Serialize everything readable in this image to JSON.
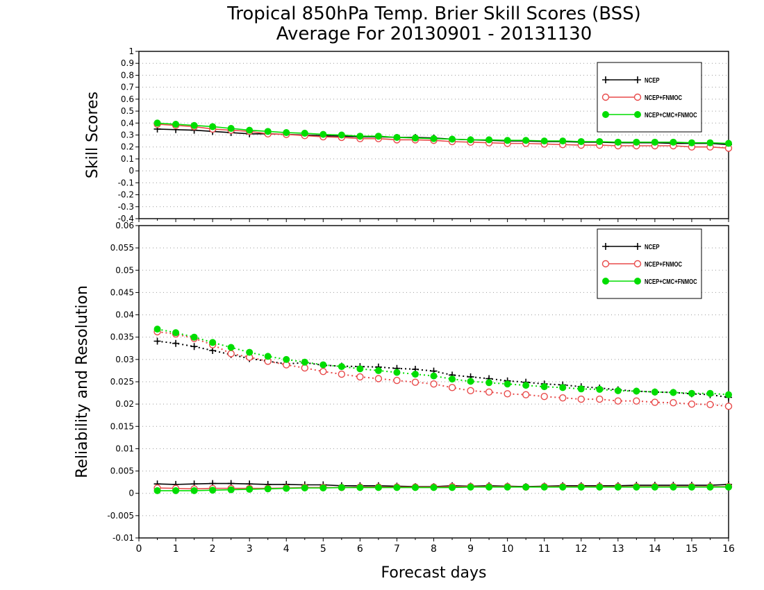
{
  "title_line1": "Tropical 850hPa Temp. Brier Skill Scores (BSS)",
  "title_line2": "Average For 20130901 - 20131130",
  "colors": {
    "ncep": "#000000",
    "ncep_fnmoc": "#e84a4a",
    "ncep_cmc_fnmoc": "#00dd00"
  },
  "chart_data": [
    {
      "type": "line",
      "ylabel": "Skill Scores",
      "xlim": [
        0,
        16
      ],
      "ylim": [
        -0.4,
        1
      ],
      "yticks": [
        -0.4,
        -0.3,
        -0.2,
        -0.1,
        0,
        0.1,
        0.2,
        0.3,
        0.4,
        0.5,
        0.6,
        0.7,
        0.8,
        0.9,
        1
      ],
      "grid": true,
      "legend_position": "top-right",
      "x": [
        0.5,
        1,
        1.5,
        2,
        2.5,
        3,
        3.5,
        4,
        4.5,
        5,
        5.5,
        6,
        6.5,
        7,
        7.5,
        8,
        8.5,
        9,
        9.5,
        10,
        10.5,
        11,
        11.5,
        12,
        12.5,
        13,
        13.5,
        14,
        14.5,
        15,
        15.5,
        16
      ],
      "series": [
        {
          "name": "NCEP",
          "style": "line",
          "marker": "plus",
          "values": [
            0.35,
            0.345,
            0.34,
            0.33,
            0.32,
            0.31,
            0.31,
            0.305,
            0.3,
            0.295,
            0.29,
            0.285,
            0.285,
            0.28,
            0.28,
            0.275,
            0.265,
            0.26,
            0.255,
            0.25,
            0.25,
            0.245,
            0.245,
            0.24,
            0.24,
            0.235,
            0.235,
            0.235,
            0.23,
            0.23,
            0.23,
            0.22
          ]
        },
        {
          "name": "NCEP+FNMOC",
          "style": "line",
          "marker": "open-circle",
          "values": [
            0.39,
            0.38,
            0.37,
            0.35,
            0.34,
            0.33,
            0.31,
            0.305,
            0.295,
            0.285,
            0.28,
            0.27,
            0.27,
            0.26,
            0.26,
            0.255,
            0.245,
            0.24,
            0.235,
            0.23,
            0.23,
            0.225,
            0.22,
            0.215,
            0.215,
            0.21,
            0.21,
            0.21,
            0.21,
            0.2,
            0.2,
            0.19
          ]
        },
        {
          "name": "NCEP+CMC+FNMOC",
          "style": "line",
          "marker": "filled-circle",
          "values": [
            0.4,
            0.39,
            0.38,
            0.37,
            0.355,
            0.34,
            0.33,
            0.32,
            0.315,
            0.305,
            0.3,
            0.29,
            0.29,
            0.28,
            0.275,
            0.27,
            0.265,
            0.26,
            0.26,
            0.255,
            0.255,
            0.25,
            0.25,
            0.245,
            0.245,
            0.24,
            0.24,
            0.24,
            0.24,
            0.235,
            0.235,
            0.23
          ]
        }
      ]
    },
    {
      "type": "line",
      "ylabel": "Reliability and Resolution",
      "xlabel": "Forecast days",
      "xlim": [
        0,
        16
      ],
      "ylim": [
        -0.01,
        0.06
      ],
      "yticks": [
        -0.01,
        -0.005,
        0,
        0.005,
        0.01,
        0.015,
        0.02,
        0.025,
        0.03,
        0.035,
        0.04,
        0.045,
        0.05,
        0.055,
        0.06
      ],
      "xticks": [
        0,
        1,
        2,
        3,
        4,
        5,
        6,
        7,
        8,
        9,
        10,
        11,
        12,
        13,
        14,
        15,
        16
      ],
      "grid": true,
      "legend_position": "top-right",
      "x": [
        0.5,
        1,
        1.5,
        2,
        2.5,
        3,
        3.5,
        4,
        4.5,
        5,
        5.5,
        6,
        6.5,
        7,
        7.5,
        8,
        8.5,
        9,
        9.5,
        10,
        10.5,
        11,
        11.5,
        12,
        12.5,
        13,
        13.5,
        14,
        14.5,
        15,
        15.5,
        16
      ],
      "series": [
        {
          "name": "NCEP",
          "style": "dotted",
          "marker": "plus",
          "values": [
            0.0341,
            0.0336,
            0.0329,
            0.032,
            0.0311,
            0.0302,
            0.0296,
            0.029,
            0.0293,
            0.0287,
            0.0285,
            0.0284,
            0.0283,
            0.028,
            0.0278,
            0.0274,
            0.0265,
            0.0261,
            0.0257,
            0.0252,
            0.0249,
            0.0245,
            0.0243,
            0.0239,
            0.0236,
            0.0232,
            0.0229,
            0.0227,
            0.0226,
            0.0223,
            0.0221,
            0.0215
          ]
        },
        {
          "name": "NCEP+FNMOC",
          "style": "dotted",
          "marker": "open-circle",
          "values": [
            0.0362,
            0.0357,
            0.0347,
            0.0333,
            0.0313,
            0.0305,
            0.0296,
            0.0288,
            0.0281,
            0.0273,
            0.0267,
            0.0261,
            0.0257,
            0.0253,
            0.0249,
            0.0245,
            0.0237,
            0.023,
            0.0227,
            0.0223,
            0.0221,
            0.0217,
            0.0214,
            0.0211,
            0.0211,
            0.0207,
            0.0207,
            0.0204,
            0.0203,
            0.02,
            0.0199,
            0.0195
          ]
        },
        {
          "name": "NCEP+CMC+FNMOC",
          "style": "dotted",
          "marker": "filled-circle",
          "values": [
            0.0368,
            0.036,
            0.035,
            0.0338,
            0.0327,
            0.0316,
            0.0307,
            0.03,
            0.0294,
            0.0288,
            0.0284,
            0.0279,
            0.0275,
            0.0271,
            0.0267,
            0.0263,
            0.0256,
            0.0251,
            0.0248,
            0.0245,
            0.0242,
            0.0239,
            0.0237,
            0.0234,
            0.0233,
            0.023,
            0.0229,
            0.0227,
            0.0226,
            0.0224,
            0.0224,
            0.0221
          ]
        },
        {
          "name": "NCEP",
          "style": "line",
          "marker": "plus",
          "legend": false,
          "values": [
            0.0021,
            0.002,
            0.0021,
            0.0022,
            0.0022,
            0.0021,
            0.002,
            0.002,
            0.0019,
            0.0019,
            0.0017,
            0.0017,
            0.0017,
            0.0016,
            0.0015,
            0.0015,
            0.0017,
            0.0016,
            0.0017,
            0.0016,
            0.0015,
            0.0016,
            0.0017,
            0.0017,
            0.0017,
            0.0017,
            0.0018,
            0.0018,
            0.0018,
            0.0018,
            0.0018,
            0.002
          ]
        },
        {
          "name": "NCEP+FNMOC",
          "style": "line",
          "marker": "open-circle",
          "legend": false,
          "values": [
            0.0012,
            0.0011,
            0.001,
            0.0011,
            0.0011,
            0.0011,
            0.0011,
            0.0012,
            0.0013,
            0.0013,
            0.0013,
            0.0014,
            0.0014,
            0.0014,
            0.0014,
            0.0014,
            0.0015,
            0.0015,
            0.0015,
            0.0015,
            0.0014,
            0.0015,
            0.0015,
            0.0015,
            0.0015,
            0.0015,
            0.0015,
            0.0015,
            0.0015,
            0.0015,
            0.0015,
            0.0015
          ]
        },
        {
          "name": "NCEP+CMC+FNMOC",
          "style": "line",
          "marker": "filled-circle",
          "legend": false,
          "values": [
            0.0006,
            0.0006,
            0.0006,
            0.0007,
            0.0008,
            0.0009,
            0.001,
            0.0011,
            0.0012,
            0.0012,
            0.0013,
            0.0013,
            0.0013,
            0.0013,
            0.0013,
            0.0013,
            0.0013,
            0.0014,
            0.0014,
            0.0014,
            0.0014,
            0.0014,
            0.0014,
            0.0014,
            0.0014,
            0.0014,
            0.0014,
            0.0014,
            0.0014,
            0.0014,
            0.0014,
            0.0014
          ]
        }
      ]
    }
  ]
}
